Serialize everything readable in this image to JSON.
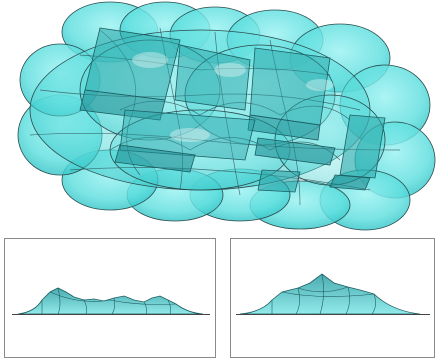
{
  "figure": {
    "views": [
      {
        "id": "top",
        "kind": "perspective-top-view"
      },
      {
        "id": "front",
        "kind": "front-elevation"
      },
      {
        "id": "side",
        "kind": "side-elevation"
      }
    ]
  },
  "colors": {
    "membrane_fill": "#4fd8d8",
    "membrane_light": "#8aeeee",
    "membrane_dark": "#1f8f94",
    "box_fill": "#2aa5a8",
    "edge": "#2b4a4c",
    "frame": "#8a8a8a",
    "ground": "#444444",
    "background": "#ffffff"
  }
}
